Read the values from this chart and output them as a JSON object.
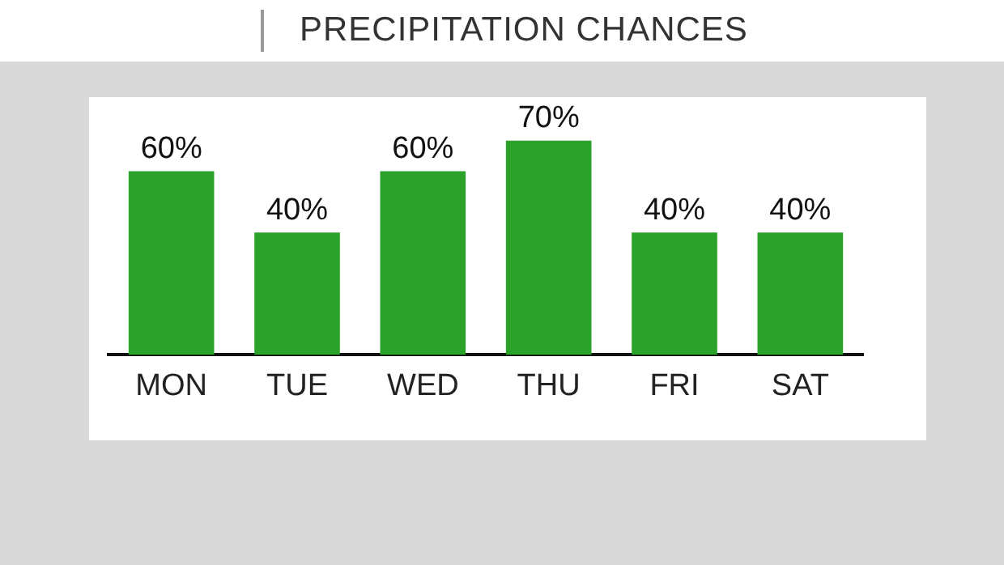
{
  "chart_data": {
    "type": "bar",
    "title": "PRECIPITATION CHANCES",
    "categories": [
      "MON",
      "TUE",
      "WED",
      "THU",
      "FRI",
      "SAT"
    ],
    "values": [
      60,
      40,
      60,
      70,
      40,
      40
    ],
    "value_labels": [
      "60%",
      "40%",
      "60%",
      "70%",
      "40%",
      "40%"
    ],
    "color": "#2ba32b",
    "grid": false,
    "legend": false
  }
}
